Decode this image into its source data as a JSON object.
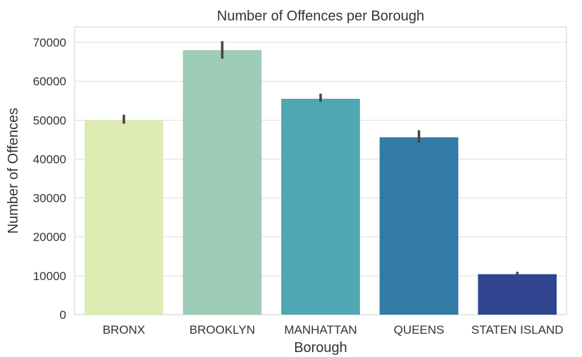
{
  "chart_data": {
    "type": "bar",
    "title": "Number of Offences per Borough",
    "xlabel": "Borough",
    "ylabel": "Number of Offences",
    "categories": [
      "BRONX",
      "BROOKLYN",
      "MANHATTAN",
      "QUEENS",
      "STATEN ISLAND"
    ],
    "values": [
      50000,
      68000,
      55500,
      45600,
      10400
    ],
    "error_low": [
      49100,
      65800,
      54700,
      44200,
      10000
    ],
    "error_high": [
      51400,
      70300,
      56800,
      47400,
      11000
    ],
    "colors": [
      "#ddecb2",
      "#9dcdb6",
      "#4fa7b3",
      "#327ba6",
      "#2f4590"
    ],
    "error_color": "#444444",
    "ylim": [
      0,
      74000
    ],
    "yticks": [
      0,
      10000,
      20000,
      30000,
      40000,
      50000,
      60000,
      70000
    ],
    "grid": true
  }
}
